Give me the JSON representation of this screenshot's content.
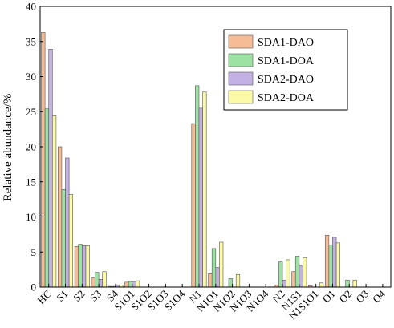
{
  "chart_data": {
    "type": "bar",
    "title": "",
    "xlabel": "",
    "ylabel": "Relative abundance/%",
    "ylim": [
      0,
      40
    ],
    "yticks": [
      0,
      5,
      10,
      15,
      20,
      25,
      30,
      35,
      40
    ],
    "categories": [
      "HC",
      "S1",
      "S2",
      "S3",
      "S4",
      "S1O1",
      "S1O2",
      "S1O3",
      "S1O4",
      "N1",
      "N1O1",
      "N1O2",
      "N1O3",
      "N1O4",
      "N2",
      "N1S1",
      "N1S1O1",
      "O1",
      "O2",
      "O3",
      "O4"
    ],
    "series": [
      {
        "name": "SDA1-DAO",
        "color": "#f6bc96",
        "values": [
          36.3,
          20.0,
          5.8,
          1.3,
          0.1,
          0.7,
          0,
          0,
          0,
          23.3,
          1.9,
          0,
          0,
          0,
          0.3,
          2.2,
          0.2,
          7.4,
          0,
          0,
          0
        ]
      },
      {
        "name": "SDA1-DOA",
        "color": "#9ee2a3",
        "values": [
          25.4,
          13.9,
          6.1,
          2.1,
          0.1,
          0.8,
          0,
          0,
          0,
          28.7,
          5.5,
          1.2,
          0,
          0,
          3.6,
          4.4,
          0,
          6.0,
          1.0,
          0,
          0
        ]
      },
      {
        "name": "SDA2-DAO",
        "color": "#c4b1e3",
        "values": [
          33.9,
          18.4,
          5.9,
          1.1,
          0.3,
          0.8,
          0,
          0,
          0,
          25.5,
          2.8,
          0,
          0,
          0,
          1.0,
          3.0,
          0,
          7.1,
          0,
          0,
          0
        ]
      },
      {
        "name": "SDA2-DOA",
        "color": "#fbfaa6",
        "values": [
          24.4,
          13.2,
          5.9,
          2.2,
          0.3,
          0.9,
          0,
          0,
          0,
          27.8,
          6.4,
          1.8,
          0,
          0,
          3.9,
          4.2,
          0.6,
          6.3,
          1.0,
          0,
          0
        ]
      }
    ],
    "legend_position": "top-right",
    "grid": false
  }
}
